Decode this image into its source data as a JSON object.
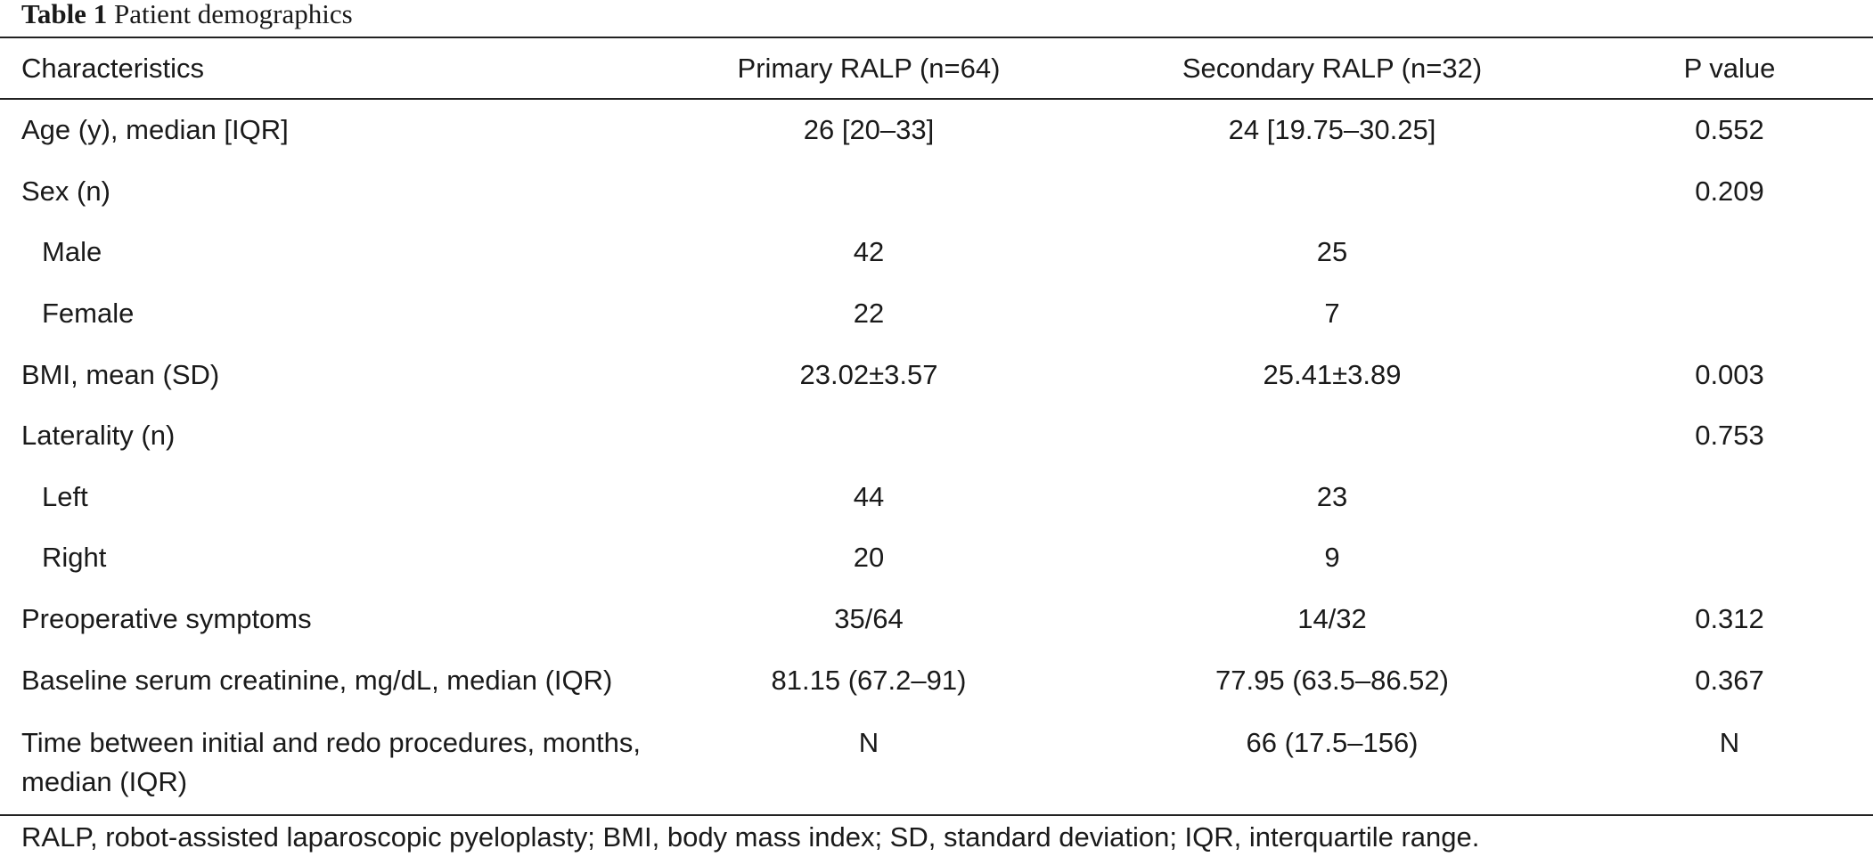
{
  "caption": {
    "label": "Table 1",
    "title": "Patient demographics"
  },
  "table": {
    "headers": [
      "Characteristics",
      "Primary RALP (n=64)",
      "Secondary RALP (n=32)",
      "P value"
    ],
    "rows": [
      {
        "label": "Age (y), median [IQR]",
        "indent": false,
        "primary": "26 [20–33]",
        "secondary": "24 [19.75–30.25]",
        "p": "0.552"
      },
      {
        "label": "Sex (n)",
        "indent": false,
        "primary": "",
        "secondary": "",
        "p": "0.209"
      },
      {
        "label": "Male",
        "indent": true,
        "primary": "42",
        "secondary": "25",
        "p": ""
      },
      {
        "label": "Female",
        "indent": true,
        "primary": "22",
        "secondary": "7",
        "p": ""
      },
      {
        "label": "BMI, mean (SD)",
        "indent": false,
        "primary": "23.02±3.57",
        "secondary": "25.41±3.89",
        "p": "0.003"
      },
      {
        "label": "Laterality (n)",
        "indent": false,
        "primary": "",
        "secondary": "",
        "p": "0.753"
      },
      {
        "label": "Left",
        "indent": true,
        "primary": "44",
        "secondary": "23",
        "p": ""
      },
      {
        "label": "Right",
        "indent": true,
        "primary": "20",
        "secondary": "9",
        "p": ""
      },
      {
        "label": "Preoperative symptoms",
        "indent": false,
        "primary": "35/64",
        "secondary": "14/32",
        "p": "0.312"
      },
      {
        "label": "Baseline serum creatinine, mg/dL, median (IQR)",
        "indent": false,
        "primary": "81.15 (67.2–91)",
        "secondary": "77.95 (63.5–86.52)",
        "p": "0.367"
      },
      {
        "label": "Time between initial and redo procedures, months, median (IQR)",
        "indent": false,
        "primary": "N",
        "secondary": "66 (17.5–156)",
        "p": "N"
      }
    ]
  },
  "footnote": "RALP, robot-assisted laparoscopic pyeloplasty; BMI, body mass index; SD, standard deviation; IQR, interquartile range."
}
